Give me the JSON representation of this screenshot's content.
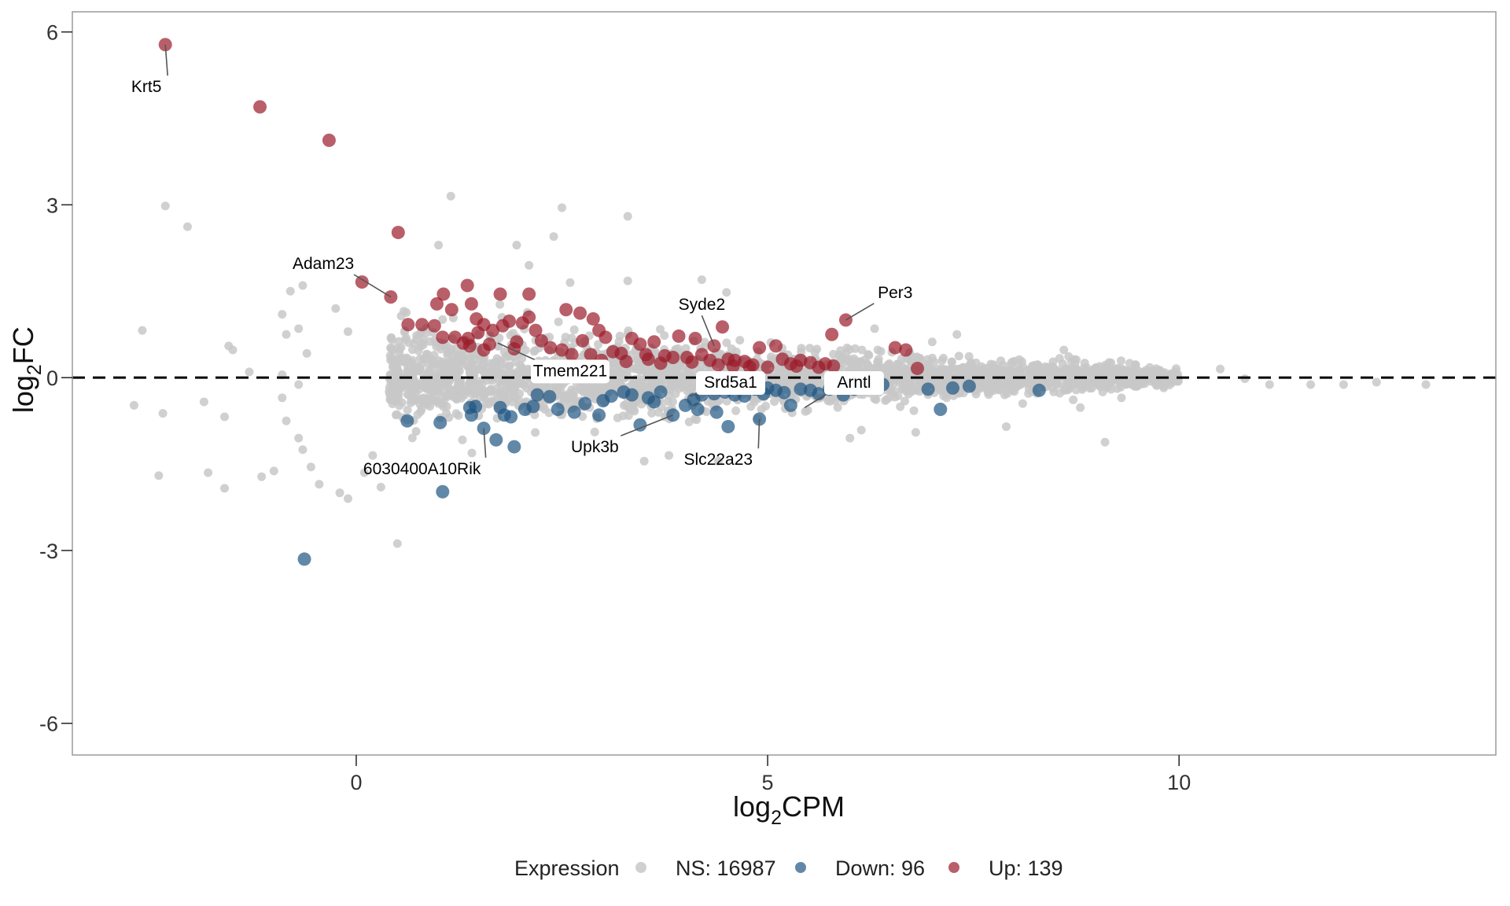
{
  "chart_data": {
    "type": "scatter",
    "title": "",
    "xlabel": "log2CPM",
    "ylabel": "log2FC",
    "xlabel_parts": {
      "base": "log",
      "sub": "2",
      "rest": "CPM"
    },
    "ylabel_parts": {
      "base": "log",
      "sub": "2",
      "rest": "FC"
    },
    "xlim": [
      -3.45,
      13.85
    ],
    "ylim": [
      -6.55,
      6.35
    ],
    "x_ticks": [
      0,
      5,
      10
    ],
    "x_tick_labels": [
      "0",
      "5",
      "10"
    ],
    "y_ticks": [
      6,
      3,
      0,
      -3,
      -6
    ],
    "y_tick_labels": [
      "6",
      "3",
      "0",
      "-3",
      "-6"
    ],
    "grid": false,
    "reference_line": {
      "y": 0,
      "style": "dashed"
    },
    "legend": {
      "title": "Expression",
      "placement": "bottom",
      "entries": [
        {
          "key": "ns",
          "label": "NS: 16987",
          "color": "#c8c8c8"
        },
        {
          "key": "down",
          "label": "Down: 96",
          "color": "#1f5683"
        },
        {
          "key": "up",
          "label": "Up: 139",
          "color": "#9b1b2a"
        }
      ]
    },
    "colors": {
      "ns": "#c8c8c8",
      "down": "#1f5683",
      "up": "#9b1b2a",
      "axis": "#888888",
      "tick": "#222222"
    },
    "counts": {
      "ns": 16987,
      "down": 96,
      "up": 139
    },
    "labeled_genes": [
      {
        "gene": "Krt5",
        "x": -2.32,
        "y": 5.78,
        "group": "up",
        "label_x": -2.55,
        "label_y": 5.05
      },
      {
        "gene": "Adam23",
        "x": 0.42,
        "y": 1.4,
        "group": "up",
        "label_x": -0.4,
        "label_y": 1.98
      },
      {
        "gene": "Tmem221",
        "x": 1.72,
        "y": 0.6,
        "group": "up",
        "label_x": 2.6,
        "label_y": 0.12,
        "boxed": true
      },
      {
        "gene": "Syde2",
        "x": 4.35,
        "y": 0.55,
        "group": "up",
        "label_x": 4.2,
        "label_y": 1.27
      },
      {
        "gene": "Per3",
        "x": 5.95,
        "y": 1.0,
        "group": "up",
        "label_x": 6.55,
        "label_y": 1.48
      },
      {
        "gene": "Srd5a1",
        "x": 4.05,
        "y": -0.32,
        "group": "down",
        "label_x": 4.55,
        "label_y": -0.08,
        "boxed": true
      },
      {
        "gene": "Arntl",
        "x": 5.45,
        "y": -0.52,
        "group": "down",
        "label_x": 6.05,
        "label_y": -0.08,
        "boxed": true
      },
      {
        "gene": "Upk3b",
        "x": 3.85,
        "y": -0.65,
        "group": "down",
        "label_x": 2.9,
        "label_y": -1.2
      },
      {
        "gene": "Slc22a23",
        "x": 4.9,
        "y": -0.72,
        "group": "down",
        "label_x": 4.4,
        "label_y": -1.42
      },
      {
        "gene": "6030400A10Rik",
        "x": 1.55,
        "y": -0.88,
        "group": "down",
        "label_x": 0.8,
        "label_y": -1.58
      }
    ],
    "up_points": [
      [
        -2.32,
        5.78
      ],
      [
        -1.17,
        4.7
      ],
      [
        -0.33,
        4.12
      ],
      [
        0.51,
        2.52
      ],
      [
        0.07,
        1.66
      ],
      [
        0.42,
        1.4
      ],
      [
        0.63,
        0.92
      ],
      [
        0.8,
        0.92
      ],
      [
        0.95,
        0.9
      ],
      [
        0.98,
        1.28
      ],
      [
        1.06,
        1.45
      ],
      [
        1.16,
        1.18
      ],
      [
        1.35,
        1.6
      ],
      [
        1.4,
        1.28
      ],
      [
        1.46,
        1.02
      ],
      [
        1.75,
        1.45
      ],
      [
        2.1,
        1.45
      ],
      [
        1.05,
        0.7
      ],
      [
        1.2,
        0.7
      ],
      [
        1.3,
        0.6
      ],
      [
        1.36,
        0.68
      ],
      [
        1.48,
        0.78
      ],
      [
        1.55,
        0.92
      ],
      [
        1.66,
        0.82
      ],
      [
        1.78,
        0.9
      ],
      [
        1.86,
        0.98
      ],
      [
        1.95,
        0.62
      ],
      [
        2.02,
        0.95
      ],
      [
        2.1,
        1.05
      ],
      [
        2.18,
        0.82
      ],
      [
        2.25,
        0.64
      ],
      [
        2.36,
        0.52
      ],
      [
        2.5,
        0.48
      ],
      [
        2.55,
        1.18
      ],
      [
        2.72,
        1.12
      ],
      [
        2.75,
        0.64
      ],
      [
        2.85,
        0.4
      ],
      [
        2.88,
        1.02
      ],
      [
        2.95,
        0.82
      ],
      [
        3.03,
        0.7
      ],
      [
        3.12,
        0.45
      ],
      [
        3.22,
        0.42
      ],
      [
        3.35,
        0.68
      ],
      [
        3.45,
        0.58
      ],
      [
        3.52,
        0.4
      ],
      [
        3.62,
        0.62
      ],
      [
        3.75,
        0.38
      ],
      [
        3.85,
        0.35
      ],
      [
        3.92,
        0.72
      ],
      [
        4.02,
        0.35
      ],
      [
        4.12,
        0.68
      ],
      [
        4.2,
        0.4
      ],
      [
        4.3,
        0.3
      ],
      [
        4.35,
        0.55
      ],
      [
        4.45,
        0.88
      ],
      [
        4.52,
        0.32
      ],
      [
        4.6,
        0.3
      ],
      [
        4.72,
        0.28
      ],
      [
        4.82,
        0.22
      ],
      [
        4.9,
        0.52
      ],
      [
        5.0,
        0.18
      ],
      [
        5.1,
        0.55
      ],
      [
        5.18,
        0.32
      ],
      [
        5.28,
        0.24
      ],
      [
        5.4,
        0.3
      ],
      [
        5.52,
        0.26
      ],
      [
        5.62,
        0.18
      ],
      [
        5.8,
        0.2
      ],
      [
        5.95,
        1.0
      ],
      [
        5.78,
        0.75
      ],
      [
        6.55,
        0.52
      ],
      [
        6.68,
        0.48
      ],
      [
        6.82,
        0.16
      ],
      [
        1.38,
        0.55
      ],
      [
        1.55,
        0.48
      ],
      [
        1.62,
        0.58
      ],
      [
        1.92,
        0.5
      ],
      [
        2.62,
        0.4
      ],
      [
        2.98,
        0.3
      ],
      [
        3.28,
        0.28
      ],
      [
        3.55,
        0.32
      ],
      [
        3.7,
        0.25
      ],
      [
        4.08,
        0.27
      ],
      [
        4.4,
        0.22
      ],
      [
        4.58,
        0.2
      ],
      [
        4.78,
        0.19
      ],
      [
        5.35,
        0.2
      ],
      [
        5.7,
        0.24
      ]
    ],
    "down_points": [
      [
        -0.63,
        -3.15
      ],
      [
        1.05,
        -1.98
      ],
      [
        0.62,
        -0.75
      ],
      [
        1.02,
        -0.78
      ],
      [
        1.38,
        -0.52
      ],
      [
        1.45,
        -0.5
      ],
      [
        1.55,
        -0.88
      ],
      [
        1.7,
        -1.08
      ],
      [
        1.75,
        -0.52
      ],
      [
        1.8,
        -0.65
      ],
      [
        1.88,
        -0.68
      ],
      [
        1.92,
        -1.2
      ],
      [
        2.05,
        -0.55
      ],
      [
        2.15,
        -0.5
      ],
      [
        2.2,
        -0.3
      ],
      [
        2.45,
        -0.55
      ],
      [
        2.65,
        -0.6
      ],
      [
        2.78,
        -0.45
      ],
      [
        2.95,
        -0.65
      ],
      [
        3.1,
        -0.32
      ],
      [
        3.25,
        -0.25
      ],
      [
        3.45,
        -0.82
      ],
      [
        3.55,
        -0.35
      ],
      [
        3.7,
        -0.25
      ],
      [
        3.85,
        -0.65
      ],
      [
        4.0,
        -0.48
      ],
      [
        4.1,
        -0.38
      ],
      [
        4.2,
        -0.3
      ],
      [
        4.35,
        -0.28
      ],
      [
        4.38,
        -0.6
      ],
      [
        4.52,
        -0.85
      ],
      [
        4.6,
        -0.3
      ],
      [
        4.72,
        -0.32
      ],
      [
        4.85,
        -0.2
      ],
      [
        4.9,
        -0.72
      ],
      [
        5.0,
        -0.18
      ],
      [
        5.1,
        -0.22
      ],
      [
        5.28,
        -0.48
      ],
      [
        5.4,
        -0.2
      ],
      [
        5.52,
        -0.22
      ],
      [
        5.62,
        -0.28
      ],
      [
        5.75,
        -0.2
      ],
      [
        5.92,
        -0.3
      ],
      [
        6.05,
        -0.2
      ],
      [
        6.25,
        -0.15
      ],
      [
        6.4,
        -0.12
      ],
      [
        6.95,
        -0.2
      ],
      [
        7.1,
        -0.55
      ],
      [
        7.25,
        -0.18
      ],
      [
        7.45,
        -0.15
      ],
      [
        8.3,
        -0.22
      ],
      [
        1.4,
        -0.65
      ],
      [
        2.35,
        -0.33
      ],
      [
        3.0,
        -0.4
      ],
      [
        3.35,
        -0.3
      ],
      [
        3.62,
        -0.42
      ],
      [
        4.15,
        -0.55
      ],
      [
        4.48,
        -0.25
      ],
      [
        4.95,
        -0.28
      ],
      [
        5.2,
        -0.26
      ]
    ],
    "ns_outlier_points": [
      [
        -2.32,
        2.98
      ],
      [
        -2.05,
        2.62
      ],
      [
        -2.6,
        0.82
      ],
      [
        -2.7,
        -0.48
      ],
      [
        -2.35,
        -0.62
      ],
      [
        -2.4,
        -1.7
      ],
      [
        -1.8,
        -1.65
      ],
      [
        -1.6,
        -1.92
      ],
      [
        -1.15,
        -1.72
      ],
      [
        -1.0,
        -1.62
      ],
      [
        -1.55,
        0.55
      ],
      [
        -1.5,
        0.48
      ],
      [
        -1.3,
        0.1
      ],
      [
        -1.85,
        -0.42
      ],
      [
        -1.6,
        -0.68
      ],
      [
        -0.8,
        1.5
      ],
      [
        -0.65,
        1.6
      ],
      [
        -0.9,
        1.1
      ],
      [
        -0.85,
        0.75
      ],
      [
        -0.7,
        0.85
      ],
      [
        -0.6,
        0.42
      ],
      [
        -0.9,
        0.05
      ],
      [
        -0.7,
        -0.12
      ],
      [
        -0.9,
        -0.35
      ],
      [
        -0.85,
        -0.75
      ],
      [
        -0.7,
        -1.05
      ],
      [
        -0.65,
        -1.25
      ],
      [
        -0.55,
        -1.55
      ],
      [
        -0.45,
        -1.85
      ],
      [
        -0.2,
        -2.0
      ],
      [
        -0.1,
        -2.1
      ],
      [
        -0.25,
        1.2
      ],
      [
        -0.1,
        0.8
      ],
      [
        0.5,
        -2.88
      ],
      [
        0.1,
        -1.65
      ],
      [
        0.2,
        -1.35
      ],
      [
        0.3,
        -1.9
      ],
      [
        1.15,
        3.15
      ],
      [
        1.0,
        2.3
      ],
      [
        2.5,
        2.95
      ],
      [
        2.4,
        2.45
      ],
      [
        1.95,
        2.3
      ],
      [
        2.1,
        1.95
      ],
      [
        2.6,
        1.65
      ],
      [
        3.3,
        2.8
      ],
      [
        3.3,
        1.68
      ],
      [
        4.2,
        1.7
      ],
      [
        4.5,
        1.48
      ],
      [
        3.5,
        -1.45
      ],
      [
        3.8,
        -1.35
      ],
      [
        4.4,
        -1.45
      ],
      [
        6.0,
        -1.05
      ],
      [
        6.8,
        -0.95
      ],
      [
        7.9,
        -0.85
      ],
      [
        9.1,
        -1.12
      ],
      [
        8.6,
        0.48
      ],
      [
        9.6,
        0.05
      ],
      [
        10.5,
        0.15
      ],
      [
        10.8,
        -0.02
      ],
      [
        11.1,
        -0.12
      ],
      [
        11.6,
        -0.12
      ],
      [
        12.0,
        -0.12
      ],
      [
        13.0,
        -0.12
      ],
      [
        12.4,
        -0.08
      ],
      [
        9.3,
        -0.35
      ],
      [
        7.0,
        0.62
      ],
      [
        7.3,
        0.75
      ],
      [
        6.3,
        0.85
      ],
      [
        8.1,
        -0.45
      ],
      [
        8.8,
        -0.52
      ]
    ],
    "ns_cloud": {
      "description": "dense cloud of non-significant genes along log2FC = 0",
      "x_range": [
        0.4,
        10.0
      ],
      "count_shown": 16987
    }
  }
}
